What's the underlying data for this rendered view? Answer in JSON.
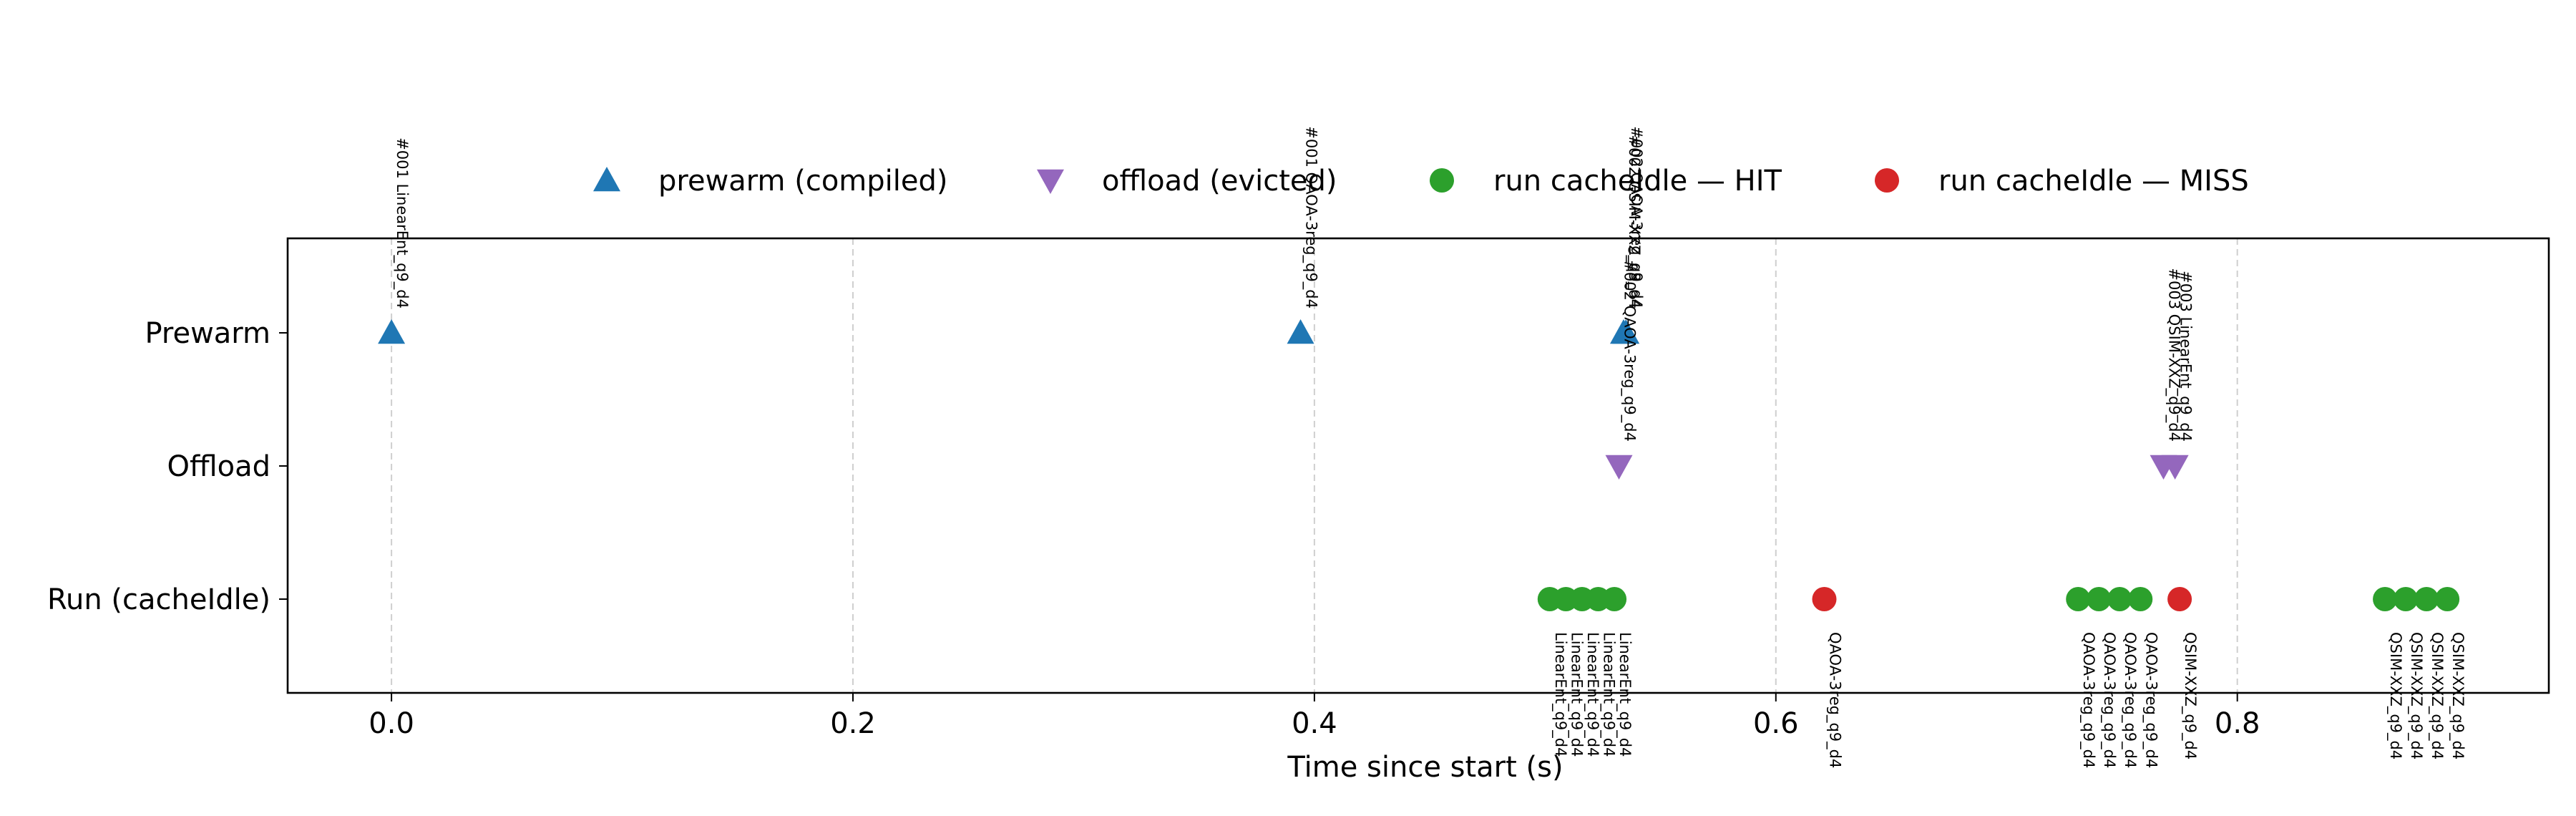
{
  "chart_data": {
    "type": "scatter",
    "xlabel": "Time since start (s)",
    "ylabel": "",
    "xlim": [
      -0.045,
      0.935
    ],
    "x_ticks": [
      0.0,
      0.2,
      0.4,
      0.6,
      0.8
    ],
    "x_tick_labels": [
      "0.0",
      "0.2",
      "0.4",
      "0.6",
      "0.8"
    ],
    "vertical_grid": true,
    "legend_placement": "top-center",
    "rows": [
      {
        "key": "prewarm",
        "label": "Prewarm"
      },
      {
        "key": "offload",
        "label": "Offload"
      },
      {
        "key": "run",
        "label": "Run (cacheIdle)"
      }
    ],
    "series": [
      {
        "name": "prewarm (compiled)",
        "row": "prewarm",
        "marker": "triangle-up",
        "color": "#1f77b4",
        "points": [
          {
            "x": 0.0,
            "label": "#001 LinearEnt_q9_d4"
          },
          {
            "x": 0.394,
            "label": "#001 QAOA-3reg_q9_d4"
          },
          {
            "x": 0.534,
            "label": "#002 QSIM-XXZ_q9_d4"
          },
          {
            "x": 0.535,
            "label": "#002 QAOA-3reg_q9_d4"
          }
        ]
      },
      {
        "name": "offload (evicted)",
        "row": "offload",
        "marker": "triangle-down",
        "color": "#9467bd",
        "points": [
          {
            "x": 0.532,
            "label": "#002 QAOA-3reg_q9_d4"
          },
          {
            "x": 0.768,
            "label": "#003 QSIM-XXZ_q9_d4"
          },
          {
            "x": 0.773,
            "label": "#003 LinearEnt_q9_d4"
          }
        ]
      },
      {
        "name": "run cacheIdle — HIT",
        "row": "run",
        "marker": "circle",
        "color": "#2ca02c",
        "points": [
          {
            "x": 0.502,
            "label": "LinearEnt_q9_d4"
          },
          {
            "x": 0.509,
            "label": "LinearEnt_q9_d4"
          },
          {
            "x": 0.516,
            "label": "LinearEnt_q9_d4"
          },
          {
            "x": 0.523,
            "label": "LinearEnt_q9_d4"
          },
          {
            "x": 0.53,
            "label": "LinearEnt_q9_d4"
          },
          {
            "x": 0.731,
            "label": "QAOA-3reg_q9_d4"
          },
          {
            "x": 0.74,
            "label": "QAOA-3reg_q9_d4"
          },
          {
            "x": 0.749,
            "label": "QAOA-3reg_q9_d4"
          },
          {
            "x": 0.758,
            "label": "QAOA-3reg_q9_d4"
          },
          {
            "x": 0.864,
            "label": "QSIM-XXZ_q9_d4"
          },
          {
            "x": 0.873,
            "label": "QSIM-XXZ_q9_d4"
          },
          {
            "x": 0.882,
            "label": "QSIM-XXZ_q9_d4"
          },
          {
            "x": 0.891,
            "label": "QSIM-XXZ_q9_d4"
          }
        ]
      },
      {
        "name": "run cacheIdle — MISS",
        "row": "run",
        "marker": "circle",
        "color": "#d62728",
        "points": [
          {
            "x": 0.621,
            "label": "QAOA-3reg_q9_d4"
          },
          {
            "x": 0.775,
            "label": "QSIM-XXZ_q9_d4"
          }
        ]
      }
    ]
  }
}
